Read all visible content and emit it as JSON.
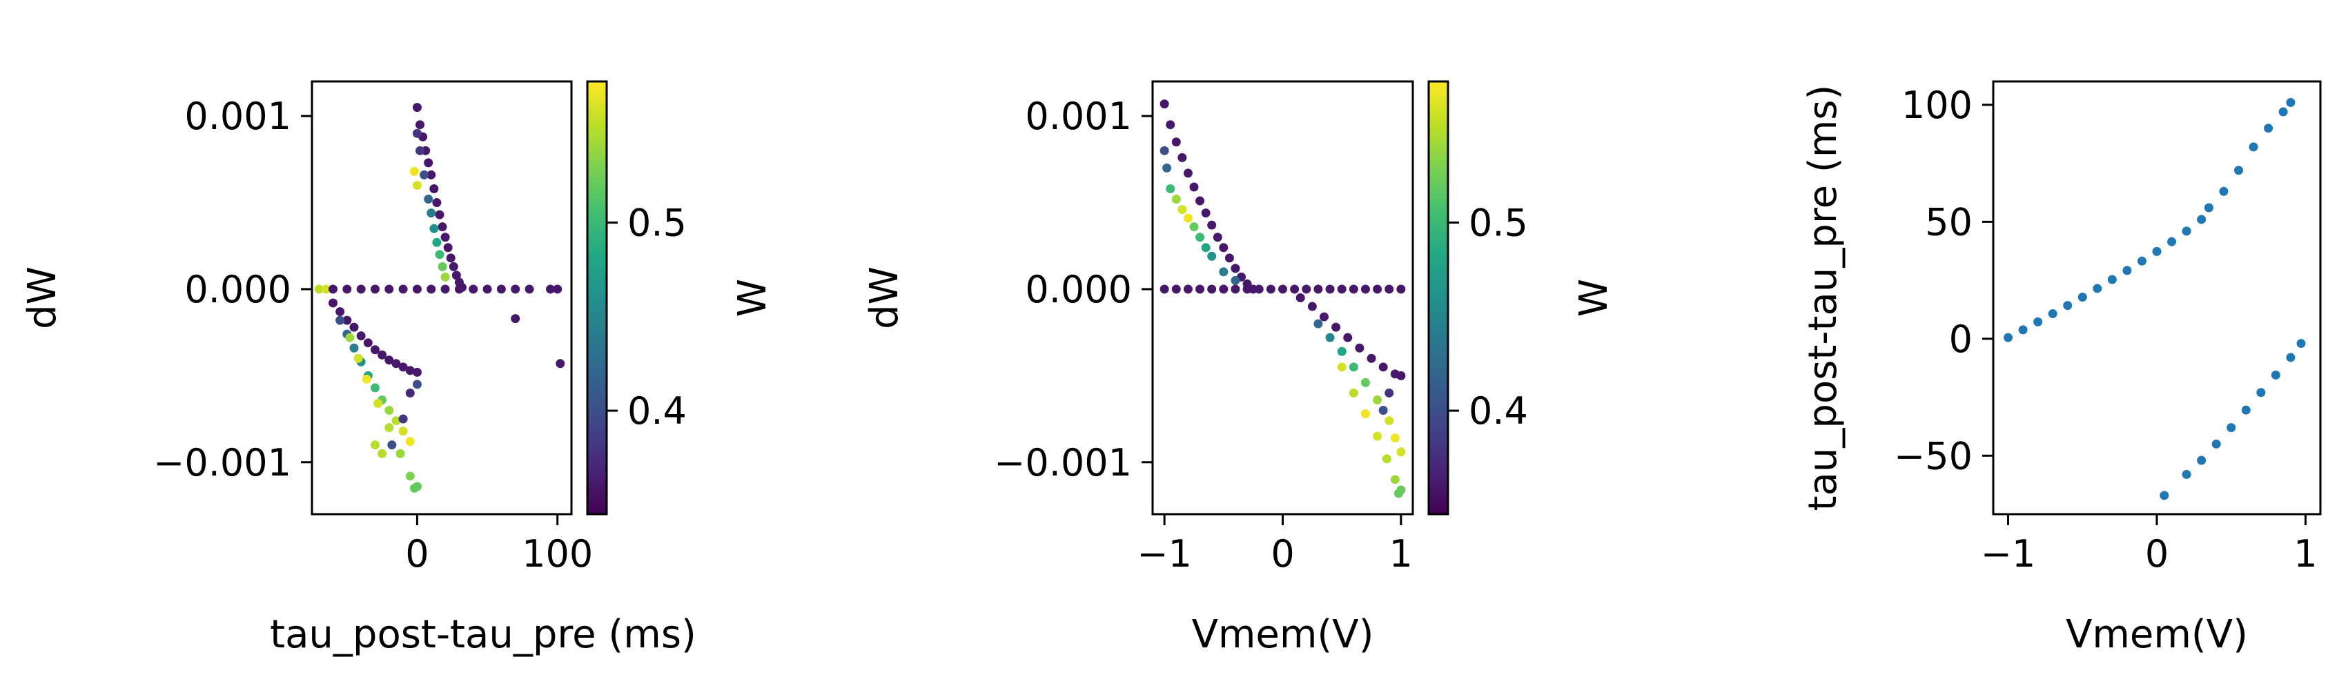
{
  "chart_data": [
    {
      "type": "scatter",
      "xlabel": "tau_post-tau_pre (ms)",
      "ylabel": "dW",
      "xlim": [
        -75,
        110
      ],
      "ylim": [
        -0.0013,
        0.0012
      ],
      "xticks": [
        {
          "v": 0,
          "label": "0"
        },
        {
          "v": 100,
          "label": "100"
        }
      ],
      "yticks": [
        {
          "v": -0.001,
          "label": "−0.001"
        },
        {
          "v": 0,
          "label": "0.000"
        },
        {
          "v": 0.001,
          "label": "0.001"
        }
      ],
      "colorbar": {
        "label": "W",
        "range": [
          0.345,
          0.575
        ],
        "ticks": [
          {
            "v": 0.4,
            "label": "0.4"
          },
          {
            "v": 0.5,
            "label": "0.5"
          }
        ]
      },
      "series": [
        {
          "points": [
            [
              -70,
              0.0,
              0.55
            ],
            [
              -65,
              0.0,
              0.56
            ],
            [
              -60,
              0.0,
              0.36
            ],
            [
              -50,
              0.0,
              0.36
            ],
            [
              -40,
              0.0,
              0.36
            ],
            [
              -30,
              0.0,
              0.36
            ],
            [
              -20,
              0.0,
              0.36
            ],
            [
              -10,
              0.0,
              0.36
            ],
            [
              0,
              0.0,
              0.36
            ],
            [
              10,
              0.0,
              0.36
            ],
            [
              20,
              0.0,
              0.36
            ],
            [
              30,
              0.0,
              0.36
            ],
            [
              40,
              0.0,
              0.36
            ],
            [
              50,
              0.0,
              0.36
            ],
            [
              60,
              0.0,
              0.36
            ],
            [
              70,
              0.0,
              0.36
            ],
            [
              80,
              0.0,
              0.36
            ],
            [
              95,
              0.0,
              0.36
            ],
            [
              100,
              0.0,
              0.36
            ],
            [
              70,
              -0.00017,
              0.36
            ],
            [
              102,
              -0.00043,
              0.36
            ],
            [
              0,
              0.00105,
              0.36
            ],
            [
              2,
              0.00095,
              0.36
            ],
            [
              4,
              0.00088,
              0.36
            ],
            [
              6,
              0.0008,
              0.36
            ],
            [
              8,
              0.00073,
              0.36
            ],
            [
              10,
              0.00066,
              0.36
            ],
            [
              12,
              0.00058,
              0.36
            ],
            [
              14,
              0.0005,
              0.36
            ],
            [
              16,
              0.00043,
              0.36
            ],
            [
              18,
              0.00036,
              0.36
            ],
            [
              20,
              0.0003,
              0.36
            ],
            [
              22,
              0.00024,
              0.36
            ],
            [
              24,
              0.00018,
              0.36
            ],
            [
              26,
              0.00013,
              0.36
            ],
            [
              28,
              8e-05,
              0.36
            ],
            [
              30,
              4e-05,
              0.36
            ],
            [
              32,
              1e-05,
              0.36
            ],
            [
              0,
              0.0009,
              0.38
            ],
            [
              2,
              0.0008,
              0.38
            ],
            [
              5,
              0.00066,
              0.4
            ],
            [
              8,
              0.00052,
              0.42
            ],
            [
              10,
              0.00044,
              0.44
            ],
            [
              12,
              0.00035,
              0.46
            ],
            [
              14,
              0.00027,
              0.48
            ],
            [
              16,
              0.0002,
              0.5
            ],
            [
              18,
              0.00013,
              0.52
            ],
            [
              20,
              7e-05,
              0.54
            ],
            [
              0,
              0.0006,
              0.56
            ],
            [
              -2,
              0.00068,
              0.57
            ],
            [
              -60,
              -8e-05,
              0.36
            ],
            [
              -55,
              -0.00013,
              0.36
            ],
            [
              -50,
              -0.00018,
              0.36
            ],
            [
              -45,
              -0.00022,
              0.36
            ],
            [
              -40,
              -0.00027,
              0.36
            ],
            [
              -35,
              -0.00031,
              0.36
            ],
            [
              -30,
              -0.00035,
              0.36
            ],
            [
              -25,
              -0.00038,
              0.36
            ],
            [
              -20,
              -0.00041,
              0.36
            ],
            [
              -15,
              -0.00043,
              0.36
            ],
            [
              -10,
              -0.00045,
              0.36
            ],
            [
              -5,
              -0.00047,
              0.36
            ],
            [
              0,
              -0.00048,
              0.36
            ],
            [
              -55,
              -0.00018,
              0.4
            ],
            [
              -50,
              -0.00026,
              0.42
            ],
            [
              -45,
              -0.00034,
              0.44
            ],
            [
              -40,
              -0.00042,
              0.46
            ],
            [
              -35,
              -0.0005,
              0.48
            ],
            [
              -30,
              -0.00057,
              0.5
            ],
            [
              -25,
              -0.00064,
              0.52
            ],
            [
              -20,
              -0.0007,
              0.54
            ],
            [
              -15,
              -0.00076,
              0.55
            ],
            [
              -10,
              -0.00082,
              0.56
            ],
            [
              -5,
              -0.00088,
              0.57
            ],
            [
              -48,
              -0.00028,
              0.54
            ],
            [
              -42,
              -0.0004,
              0.56
            ],
            [
              -36,
              -0.00052,
              0.57
            ],
            [
              -28,
              -0.00066,
              0.56
            ],
            [
              -20,
              -0.0008,
              0.55
            ],
            [
              -12,
              -0.00095,
              0.54
            ],
            [
              -5,
              -0.00108,
              0.53
            ],
            [
              -2,
              -0.00115,
              0.52
            ],
            [
              0,
              -0.00114,
              0.52
            ],
            [
              -30,
              -0.0009,
              0.55
            ],
            [
              -25,
              -0.00095,
              0.55
            ],
            [
              -18,
              -0.0009,
              0.4
            ],
            [
              -10,
              -0.00075,
              0.38
            ],
            [
              -5,
              -0.0006,
              0.37
            ],
            [
              0,
              -0.00055,
              0.4
            ]
          ]
        }
      ]
    },
    {
      "type": "scatter",
      "xlabel": "Vmem(V)",
      "ylabel": "dW",
      "xlim": [
        -1.1,
        1.1
      ],
      "ylim": [
        -0.0013,
        0.0012
      ],
      "xticks": [
        {
          "v": -1,
          "label": "−1"
        },
        {
          "v": 0,
          "label": "0"
        },
        {
          "v": 1,
          "label": "1"
        }
      ],
      "yticks": [
        {
          "v": -0.001,
          "label": "−0.001"
        },
        {
          "v": 0,
          "label": "0.000"
        },
        {
          "v": 0.001,
          "label": "0.001"
        }
      ],
      "colorbar": {
        "label": "W",
        "range": [
          0.345,
          0.575
        ],
        "ticks": [
          {
            "v": 0.4,
            "label": "0.4"
          },
          {
            "v": 0.5,
            "label": "0.5"
          }
        ]
      },
      "series": [
        {
          "points": [
            [
              -1.0,
              0.00107,
              0.36
            ],
            [
              -0.95,
              0.00095,
              0.36
            ],
            [
              -0.9,
              0.00085,
              0.36
            ],
            [
              -0.85,
              0.00076,
              0.36
            ],
            [
              -0.8,
              0.00067,
              0.36
            ],
            [
              -0.75,
              0.00059,
              0.36
            ],
            [
              -0.7,
              0.00051,
              0.36
            ],
            [
              -0.65,
              0.00044,
              0.36
            ],
            [
              -0.6,
              0.00037,
              0.36
            ],
            [
              -0.55,
              0.0003,
              0.36
            ],
            [
              -0.5,
              0.00024,
              0.36
            ],
            [
              -0.45,
              0.00018,
              0.36
            ],
            [
              -0.4,
              0.00012,
              0.36
            ],
            [
              -0.35,
              7e-05,
              0.36
            ],
            [
              -0.3,
              3e-05,
              0.36
            ],
            [
              -0.25,
              0.0,
              0.36
            ],
            [
              -1.0,
              0.0008,
              0.4
            ],
            [
              -0.98,
              0.0007,
              0.42
            ],
            [
              -0.95,
              0.00058,
              0.5
            ],
            [
              -0.9,
              0.00052,
              0.54
            ],
            [
              -0.85,
              0.00046,
              0.56
            ],
            [
              -0.8,
              0.00041,
              0.57
            ],
            [
              -0.75,
              0.00036,
              0.52
            ],
            [
              -0.7,
              0.0003,
              0.5
            ],
            [
              -0.65,
              0.00024,
              0.48
            ],
            [
              -0.6,
              0.00019,
              0.46
            ],
            [
              -0.5,
              0.0001,
              0.44
            ],
            [
              -0.4,
              5e-05,
              0.42
            ],
            [
              -1.0,
              0.0,
              0.36
            ],
            [
              -0.9,
              0.0,
              0.36
            ],
            [
              -0.8,
              0.0,
              0.36
            ],
            [
              -0.7,
              0.0,
              0.36
            ],
            [
              -0.6,
              0.0,
              0.36
            ],
            [
              -0.5,
              0.0,
              0.36
            ],
            [
              -0.4,
              0.0,
              0.36
            ],
            [
              -0.3,
              0.0,
              0.36
            ],
            [
              -0.2,
              0.0,
              0.36
            ],
            [
              -0.1,
              0.0,
              0.36
            ],
            [
              0.0,
              0.0,
              0.36
            ],
            [
              0.1,
              0.0,
              0.36
            ],
            [
              0.2,
              0.0,
              0.36
            ],
            [
              0.3,
              0.0,
              0.36
            ],
            [
              0.4,
              0.0,
              0.36
            ],
            [
              0.5,
              0.0,
              0.36
            ],
            [
              0.6,
              0.0,
              0.36
            ],
            [
              0.7,
              0.0,
              0.36
            ],
            [
              0.8,
              0.0,
              0.36
            ],
            [
              0.9,
              0.0,
              0.36
            ],
            [
              1.0,
              0.0,
              0.36
            ],
            [
              0.15,
              -5e-05,
              0.36
            ],
            [
              0.25,
              -0.0001,
              0.36
            ],
            [
              0.35,
              -0.00016,
              0.36
            ],
            [
              0.45,
              -0.00022,
              0.36
            ],
            [
              0.55,
              -0.00028,
              0.36
            ],
            [
              0.65,
              -0.00034,
              0.36
            ],
            [
              0.75,
              -0.0004,
              0.36
            ],
            [
              0.85,
              -0.00045,
              0.36
            ],
            [
              0.95,
              -0.00049,
              0.36
            ],
            [
              1.0,
              -0.0005,
              0.36
            ],
            [
              0.3,
              -0.0002,
              0.42
            ],
            [
              0.4,
              -0.00028,
              0.45
            ],
            [
              0.5,
              -0.00036,
              0.48
            ],
            [
              0.6,
              -0.00045,
              0.5
            ],
            [
              0.7,
              -0.00054,
              0.52
            ],
            [
              0.8,
              -0.00064,
              0.54
            ],
            [
              0.9,
              -0.00076,
              0.56
            ],
            [
              0.95,
              -0.00086,
              0.57
            ],
            [
              1.0,
              -0.00094,
              0.56
            ],
            [
              0.6,
              -0.0006,
              0.55
            ],
            [
              0.7,
              -0.00072,
              0.57
            ],
            [
              0.8,
              -0.00085,
              0.56
            ],
            [
              0.88,
              -0.00098,
              0.55
            ],
            [
              0.95,
              -0.0011,
              0.54
            ],
            [
              1.0,
              -0.00116,
              0.52
            ],
            [
              0.98,
              -0.00118,
              0.52
            ],
            [
              0.5,
              -0.00045,
              0.56
            ],
            [
              0.85,
              -0.0007,
              0.4
            ],
            [
              0.9,
              -0.0006,
              0.38
            ]
          ]
        }
      ]
    },
    {
      "type": "scatter",
      "xlabel": "Vmem(V)",
      "ylabel": "tau_post-tau_pre (ms)",
      "xlim": [
        -1.1,
        1.1
      ],
      "ylim": [
        -75,
        110
      ],
      "color": "#1f77b4",
      "xticks": [
        {
          "v": -1,
          "label": "−1"
        },
        {
          "v": 0,
          "label": "0"
        },
        {
          "v": 1,
          "label": "1"
        }
      ],
      "yticks": [
        {
          "v": -50,
          "label": "−50"
        },
        {
          "v": 0,
          "label": "0"
        },
        {
          "v": 50,
          "label": "50"
        },
        {
          "v": 100,
          "label": "100"
        }
      ],
      "series": [
        {
          "points": [
            [
              -1.0,
              0.5
            ],
            [
              -0.9,
              3.8
            ],
            [
              -0.8,
              7.2
            ],
            [
              -0.7,
              10.7
            ],
            [
              -0.6,
              14.2
            ],
            [
              -0.5,
              17.8
            ],
            [
              -0.4,
              21.5
            ],
            [
              -0.3,
              25.3
            ],
            [
              -0.2,
              29.2
            ],
            [
              -0.1,
              33.2
            ],
            [
              0.0,
              37.3
            ],
            [
              0.1,
              41.5
            ],
            [
              0.2,
              46.0
            ],
            [
              0.3,
              51.0
            ],
            [
              0.35,
              56.0
            ],
            [
              0.45,
              63.0
            ],
            [
              0.55,
              72.0
            ],
            [
              0.65,
              82.0
            ],
            [
              0.75,
              90.0
            ],
            [
              0.85,
              97.0
            ],
            [
              0.9,
              101.0
            ],
            [
              0.05,
              -67.0
            ],
            [
              0.2,
              -58.0
            ],
            [
              0.3,
              -52.0
            ],
            [
              0.4,
              -45.0
            ],
            [
              0.5,
              -38.0
            ],
            [
              0.6,
              -30.5
            ],
            [
              0.7,
              -23.0
            ],
            [
              0.8,
              -15.5
            ],
            [
              0.9,
              -8.0
            ],
            [
              0.97,
              -2.0
            ]
          ]
        }
      ]
    }
  ]
}
